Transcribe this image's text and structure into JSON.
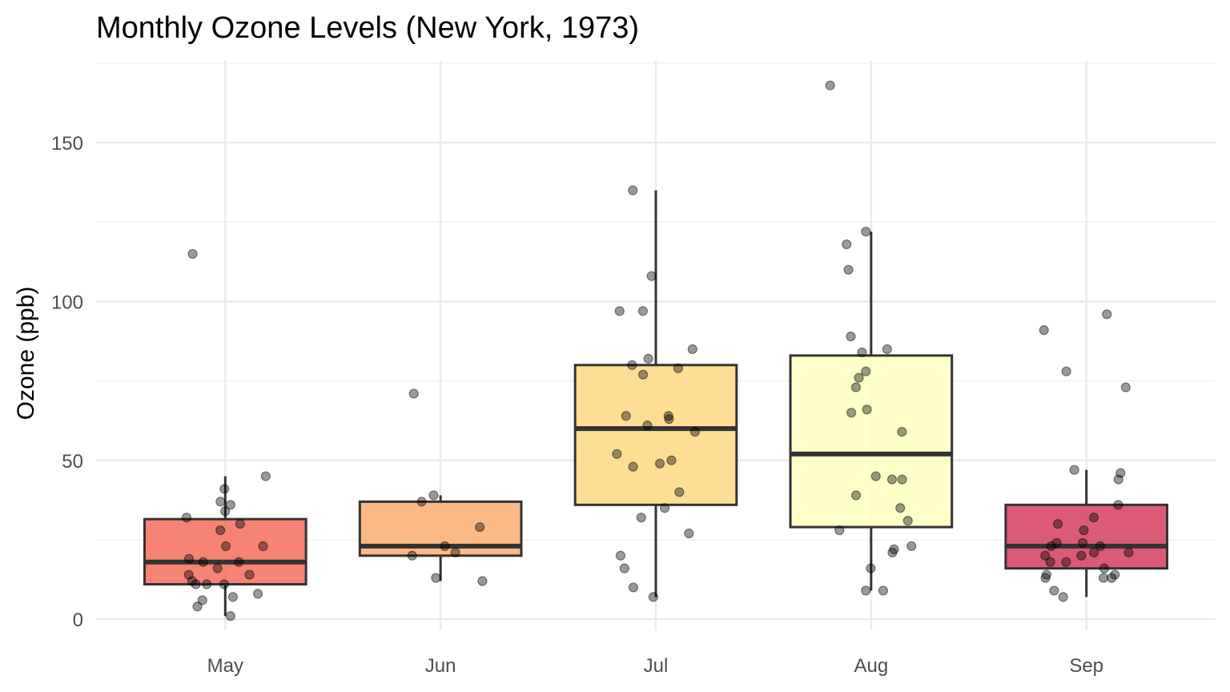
{
  "chart_data": {
    "type": "boxplot",
    "title": "Monthly Ozone Levels (New York, 1973)",
    "xlabel": "",
    "ylabel": "Ozone (ppb)",
    "ylim": [
      -3.5,
      176
    ],
    "yticks": [
      0,
      50,
      100,
      150
    ],
    "grid": true,
    "legend": "none",
    "categories": [
      "May",
      "Jun",
      "Jul",
      "Aug",
      "Sep"
    ],
    "colors": [
      "#f46d5a",
      "#fdad70",
      "#fed882",
      "#ffffbf",
      "#d53e5e"
    ],
    "boxes": [
      {
        "category": "May",
        "whisker_low": 1,
        "q1": 11,
        "median": 18,
        "q3": 31.5,
        "whisker_high": 45
      },
      {
        "category": "Jun",
        "whisker_low": 12,
        "q1": 20,
        "median": 23,
        "q3": 37,
        "whisker_high": 39
      },
      {
        "category": "Jul",
        "whisker_low": 7,
        "q1": 36,
        "median": 60,
        "q3": 80,
        "whisker_high": 135
      },
      {
        "category": "Aug",
        "whisker_low": 9,
        "q1": 29,
        "median": 52,
        "q3": 83,
        "whisker_high": 122
      },
      {
        "category": "Sep",
        "whisker_low": 7,
        "q1": 16,
        "median": 23,
        "q3": 36,
        "whisker_high": 47
      }
    ],
    "points": [
      {
        "category": "May",
        "values": [
          41,
          36,
          12,
          18,
          28,
          23,
          19,
          8,
          7,
          16,
          11,
          14,
          18,
          14,
          34,
          6,
          30,
          11,
          1,
          11,
          4,
          32,
          23,
          45,
          115,
          37
        ]
      },
      {
        "category": "Jun",
        "values": [
          29,
          71,
          39,
          23,
          21,
          37,
          20,
          12,
          13
        ]
      },
      {
        "category": "Jul",
        "values": [
          135,
          49,
          32,
          64,
          40,
          77,
          97,
          97,
          85,
          10,
          27,
          7,
          48,
          35,
          61,
          79,
          63,
          16,
          80,
          108,
          20,
          52,
          82,
          50,
          64,
          59
        ]
      },
      {
        "category": "Aug",
        "values": [
          39,
          9,
          16,
          78,
          35,
          66,
          122,
          89,
          110,
          44,
          28,
          65,
          22,
          59,
          23,
          31,
          44,
          21,
          9,
          45,
          168,
          73,
          76,
          118,
          84,
          85
        ]
      },
      {
        "category": "Sep",
        "values": [
          96,
          78,
          73,
          91,
          47,
          32,
          20,
          23,
          21,
          24,
          44,
          21,
          28,
          9,
          13,
          46,
          18,
          13,
          24,
          16,
          13,
          23,
          36,
          7,
          14,
          30,
          14,
          18,
          20
        ]
      }
    ]
  }
}
